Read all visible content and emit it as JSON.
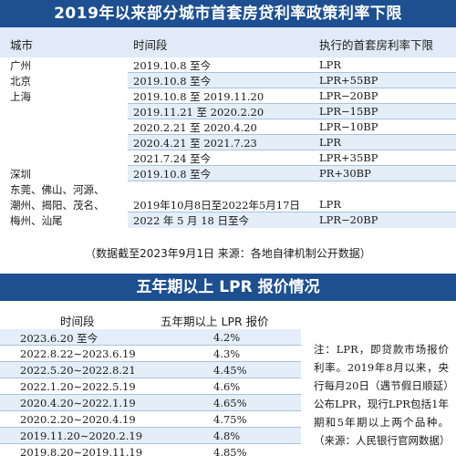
{
  "title1": "2019年以来部分城市首套房贷利率政策利率下限",
  "table1": {
    "headers": [
      "城市",
      "时间段",
      "执行的首套房利率下限"
    ],
    "rows": [
      {
        "city": "广州",
        "period": "2019.10.8 至今",
        "rate": "LPR"
      },
      {
        "city": "北京",
        "period": "2019.10.8 至今",
        "rate": "LPR+55BP"
      },
      {
        "city": "上海",
        "period": "2019.10.8 至 2019.11.20",
        "rate": "LPR−20BP"
      },
      {
        "city": "",
        "period": "2019.11.21 至 2020.2.20",
        "rate": "LPR−15BP"
      },
      {
        "city": "",
        "period": "2020.2.21 至 2020.4.20",
        "rate": "LPR−10BP"
      },
      {
        "city": "",
        "period": "2020.4.21 至 2021.7.23",
        "rate": "LPR"
      },
      {
        "city": "",
        "period": "2021.7.24 至今",
        "rate": "LPR+35BP"
      },
      {
        "city": "深圳",
        "period": "2019.10.8 至今",
        "rate": "PR+30BP"
      },
      {
        "city": "东莞、佛山、河源、",
        "period": "",
        "rate": ""
      },
      {
        "city": "潮州、揭阳、茂名、",
        "period": "2019年10月8日至2022年5月17日",
        "rate": "LPR"
      },
      {
        "city": "梅州、汕尾",
        "period": "2022 年 5 月 18 日至今",
        "rate": "LPR−20BP"
      }
    ]
  },
  "note1": "（数据截至2023年9月1日  来源：各地自律机制公开数据）",
  "title2": "五年期以上 LPR 报价情况",
  "table2": {
    "headers": [
      "时间段",
      "五年期以上 LPR 报价"
    ],
    "rows": [
      {
        "period": "2023.6.20 至今",
        "rate": "4.2%"
      },
      {
        "period": "2022.8.22∼2023.6.19",
        "rate": "4.3%"
      },
      {
        "period": "2022.5.20∼2022.8.21",
        "rate": "4.45%"
      },
      {
        "period": "2022.1.20∼2022.5.19",
        "rate": "4.6%"
      },
      {
        "period": "2020.4.20∼2022.1.19",
        "rate": "4.65%"
      },
      {
        "period": "2020.2.20∼2020.4.19",
        "rate": "4.75%"
      },
      {
        "period": "2019.11.20∼2020.2.19",
        "rate": "4.8%"
      },
      {
        "period": "2019.8.20∼2019.11.19",
        "rate": "4.85%"
      }
    ]
  },
  "sidenote": "注：LPR，即贷款市场报价利率。2019年8月以来，央行每月20日（遇节假日顺延）公布LPR，现行LPR包括1年期和5年期以上两个品种。（来源：人民银行官网数据）"
}
